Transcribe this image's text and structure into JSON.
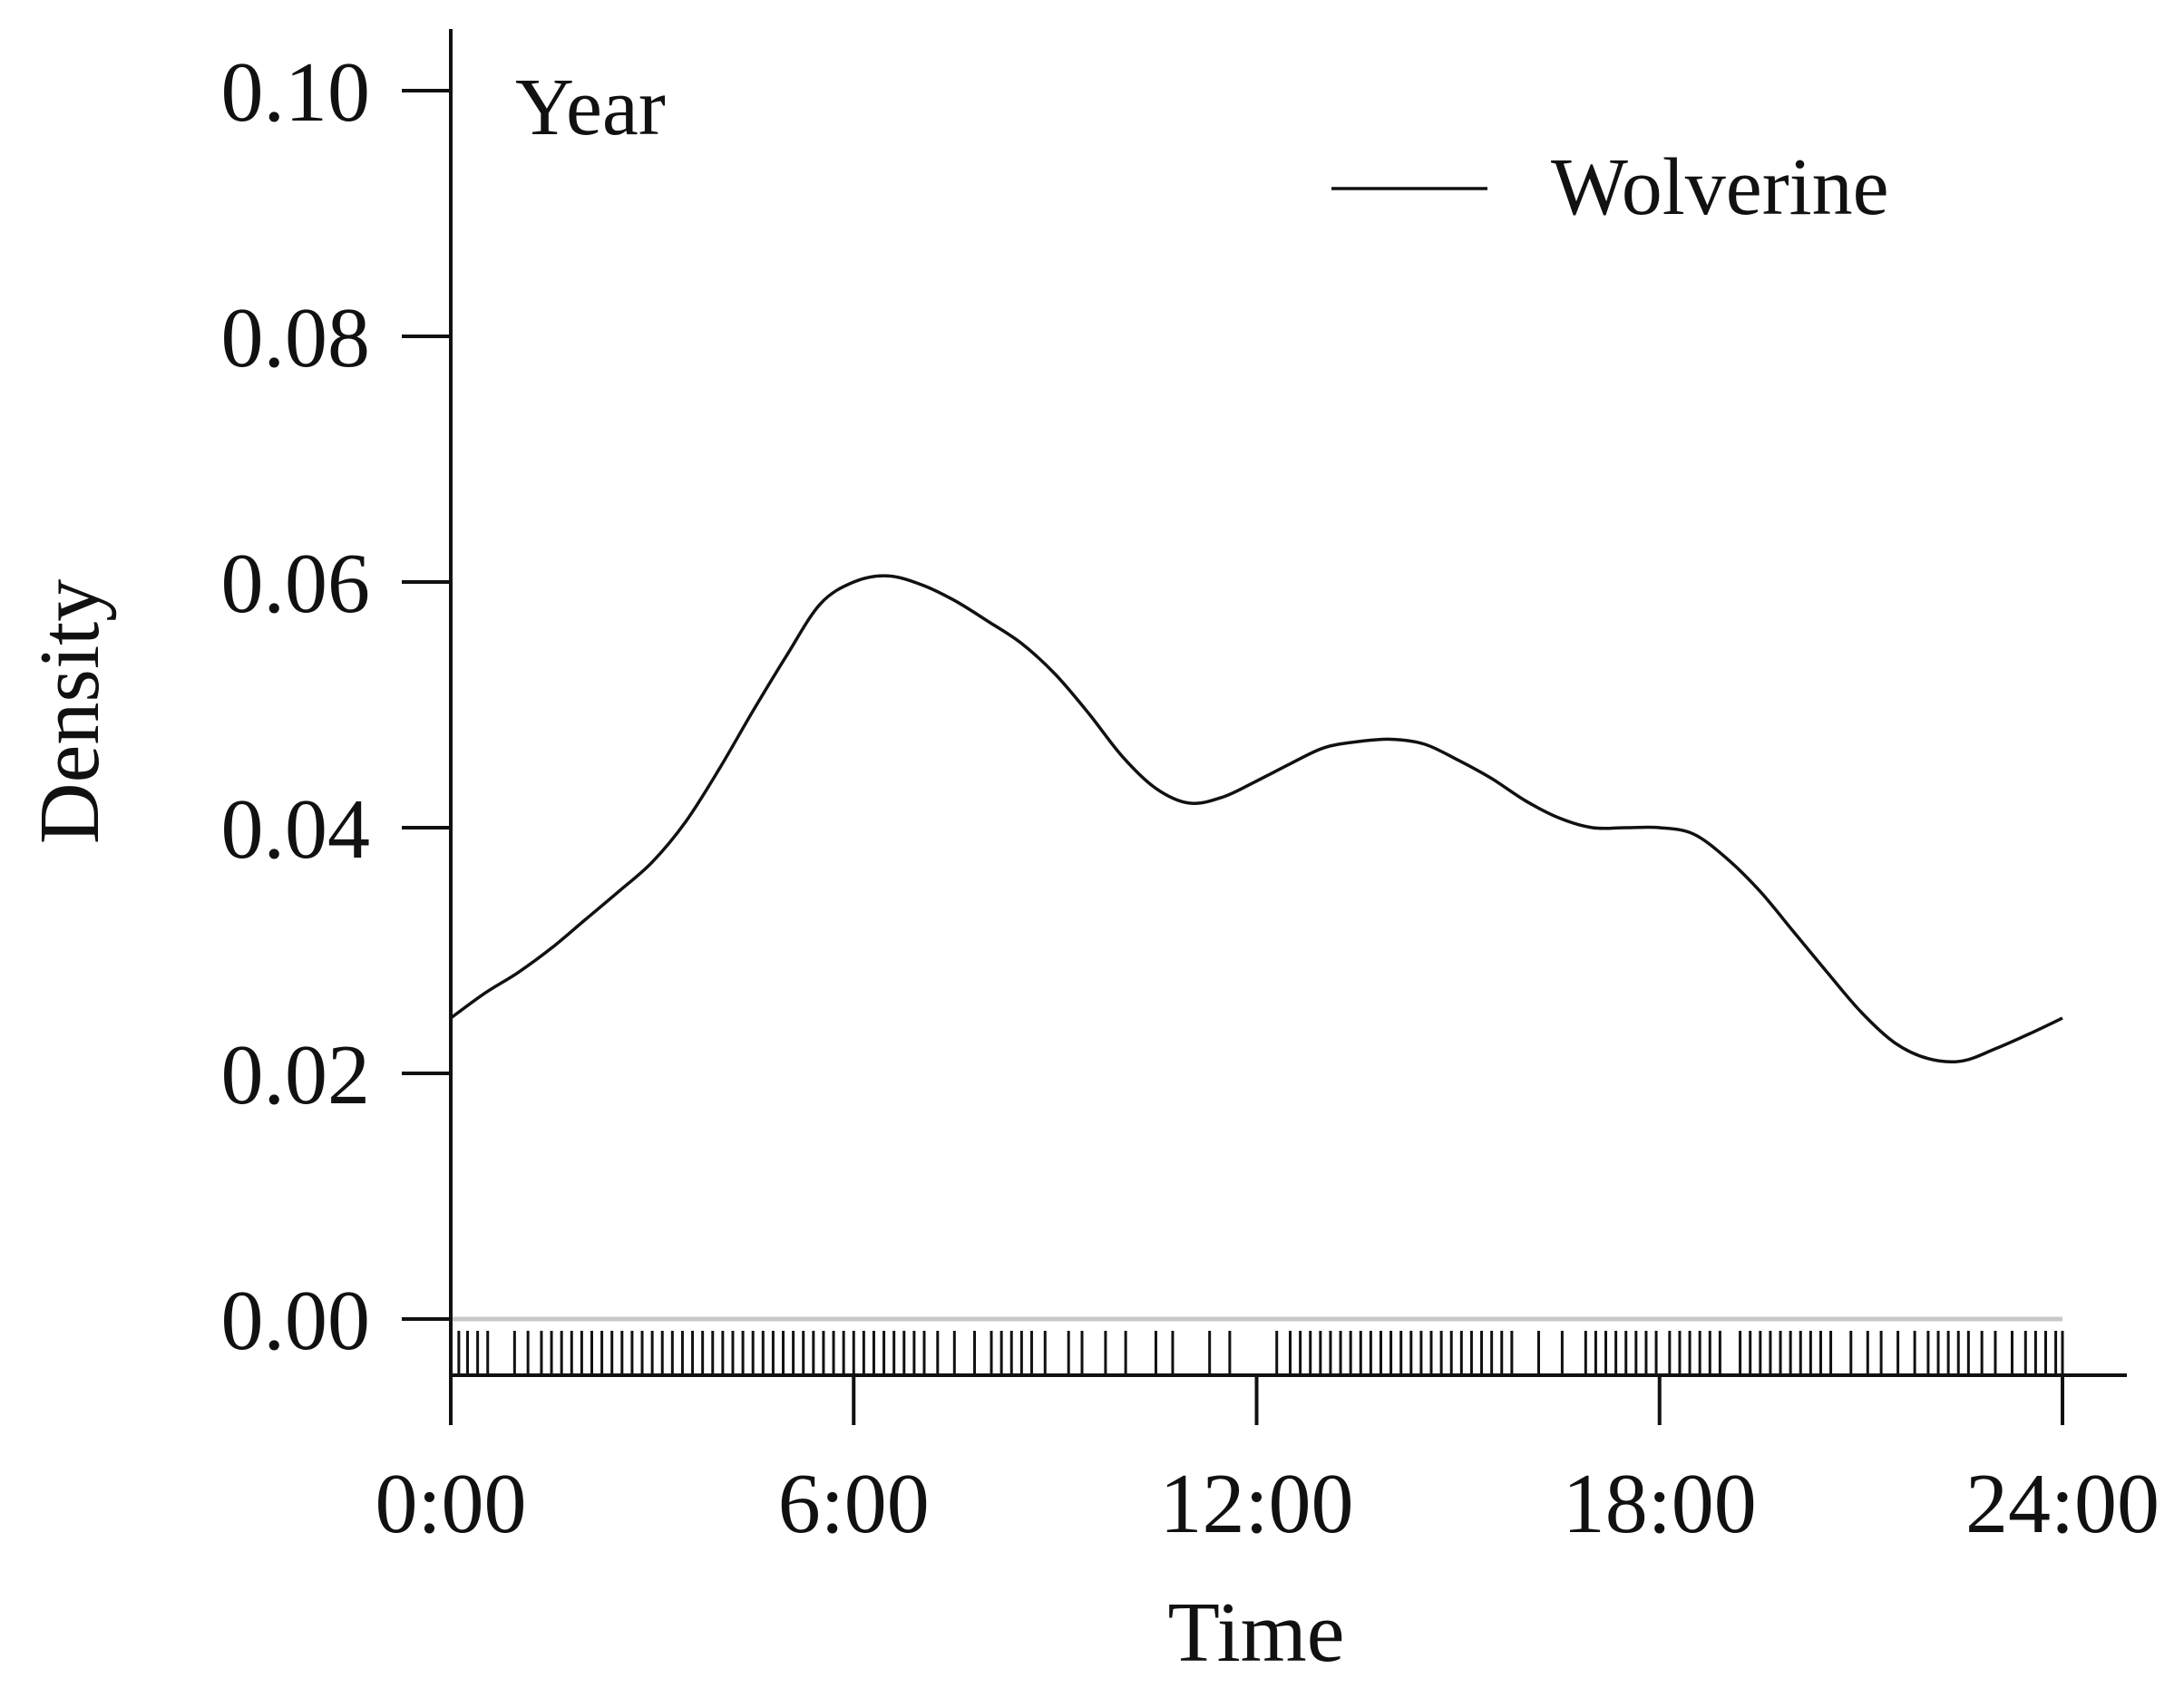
{
  "chart_data": {
    "type": "line",
    "title": "",
    "panel_label": "Year",
    "xlabel": "Time",
    "ylabel": "Density",
    "xlim": [
      0,
      24
    ],
    "ylim": [
      0,
      0.1
    ],
    "x_ticks": [
      0,
      6,
      12,
      18,
      24
    ],
    "x_tick_labels": [
      "0:00",
      "6:00",
      "12:00",
      "18:00",
      "24:00"
    ],
    "y_ticks": [
      0.0,
      0.02,
      0.04,
      0.06,
      0.08,
      0.1
    ],
    "y_tick_labels": [
      "0.00",
      "0.02",
      "0.04",
      "0.06",
      "0.08",
      "0.10"
    ],
    "grid": false,
    "legend_position": "top-right",
    "series": [
      {
        "name": "Wolverine",
        "color": "#111111",
        "x": [
          0,
          0.5,
          1,
          1.5,
          2,
          2.5,
          3,
          3.5,
          4,
          4.5,
          5,
          5.5,
          6,
          6.5,
          7,
          7.5,
          8,
          8.5,
          9,
          9.5,
          10,
          10.5,
          11,
          11.5,
          12,
          12.5,
          13,
          13.5,
          14,
          14.5,
          15,
          15.5,
          16,
          16.5,
          17,
          17.5,
          18,
          18.5,
          19,
          19.5,
          20,
          20.5,
          21,
          21.5,
          22,
          22.5,
          23,
          23.5,
          24
        ],
        "y": [
          0.0245,
          0.0265,
          0.0282,
          0.0302,
          0.0325,
          0.0348,
          0.0372,
          0.0405,
          0.0448,
          0.0495,
          0.054,
          0.0582,
          0.06,
          0.0605,
          0.0598,
          0.0585,
          0.0568,
          0.055,
          0.0525,
          0.0493,
          0.0458,
          0.0432,
          0.042,
          0.0425,
          0.0438,
          0.0452,
          0.0465,
          0.047,
          0.0472,
          0.0468,
          0.0455,
          0.044,
          0.0422,
          0.0408,
          0.04,
          0.04,
          0.04,
          0.0395,
          0.0375,
          0.0348,
          0.0315,
          0.0282,
          0.025,
          0.0225,
          0.0212,
          0.021,
          0.022,
          0.0232,
          0.0245
        ]
      }
    ],
    "rug_times": [
      0.12,
      0.25,
      0.4,
      0.55,
      0.95,
      1.15,
      1.35,
      1.5,
      1.65,
      1.8,
      1.95,
      2.1,
      2.25,
      2.4,
      2.55,
      2.7,
      2.85,
      3.0,
      3.15,
      3.3,
      3.45,
      3.6,
      3.75,
      3.9,
      4.05,
      4.2,
      4.35,
      4.5,
      4.65,
      4.8,
      4.95,
      5.1,
      5.25,
      5.4,
      5.55,
      5.7,
      5.85,
      6.0,
      6.15,
      6.3,
      6.45,
      6.6,
      6.75,
      6.9,
      7.05,
      7.25,
      7.5,
      7.8,
      8.05,
      8.2,
      8.35,
      8.5,
      8.65,
      8.85,
      9.2,
      9.4,
      9.75,
      10.05,
      10.5,
      10.75,
      11.3,
      11.6,
      12.3,
      12.5,
      12.65,
      12.8,
      12.95,
      13.1,
      13.25,
      13.4,
      13.55,
      13.7,
      13.85,
      14.0,
      14.15,
      14.3,
      14.45,
      14.6,
      14.75,
      14.9,
      15.05,
      15.2,
      15.35,
      15.5,
      15.65,
      15.8,
      16.2,
      16.55,
      16.9,
      17.05,
      17.2,
      17.35,
      17.5,
      17.65,
      17.8,
      17.95,
      18.15,
      18.3,
      18.45,
      18.6,
      18.75,
      18.9,
      19.2,
      19.35,
      19.5,
      19.65,
      19.8,
      19.95,
      20.1,
      20.25,
      20.4,
      20.55,
      20.85,
      21.1,
      21.3,
      21.55,
      21.8,
      22.0,
      22.15,
      22.3,
      22.45,
      22.6,
      22.8,
      23.0,
      23.25,
      23.45,
      23.6,
      23.75,
      23.9,
      24.0
    ]
  }
}
